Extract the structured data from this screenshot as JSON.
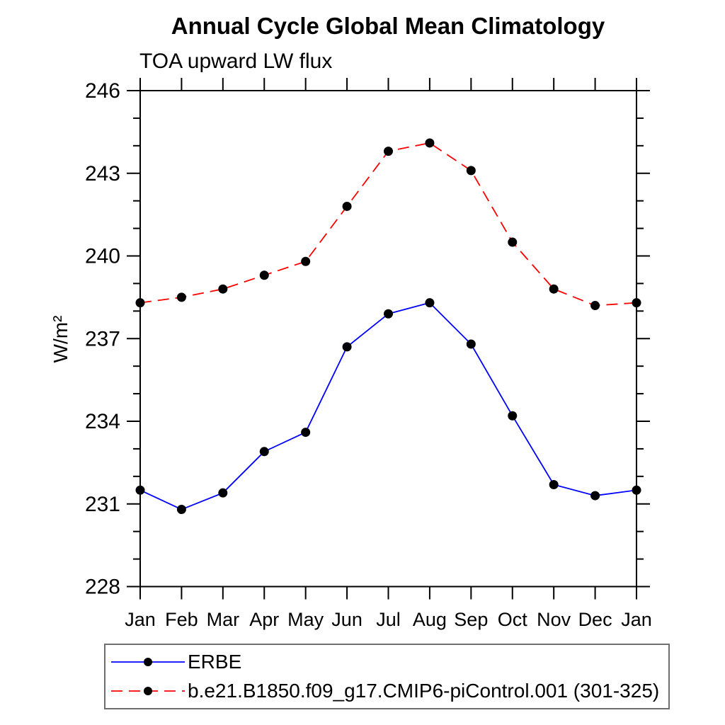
{
  "chart_data": {
    "type": "line",
    "title": "Annual Cycle Global Mean Climatology",
    "subtitle": "TOA upward LW flux",
    "ylabel": "W/m²",
    "xlabel": "",
    "categories": [
      "Jan",
      "Feb",
      "Mar",
      "Apr",
      "May",
      "Jun",
      "Jul",
      "Aug",
      "Sep",
      "Oct",
      "Nov",
      "Dec",
      "Jan"
    ],
    "ylim": [
      228,
      246
    ],
    "ytick_major_step": 3,
    "ytick_minor_step": 1,
    "ytick_labels": [
      "228",
      "231",
      "234",
      "237",
      "240",
      "243",
      "246"
    ],
    "grid": false,
    "legend_position": "bottom",
    "axis_color": "#000000",
    "marker_color": "#000000",
    "series": [
      {
        "name": "ERBE",
        "color": "#0000ff",
        "line_style": "solid",
        "marker": "circle",
        "values": [
          231.5,
          230.8,
          231.4,
          232.9,
          233.6,
          236.7,
          237.9,
          238.3,
          236.8,
          234.2,
          231.7,
          231.3,
          231.5
        ]
      },
      {
        "name": "b.e21.B1850.f09_g17.CMIP6-piControl.001 (301-325)",
        "color": "#ff0000",
        "line_style": "dashed",
        "marker": "circle",
        "values": [
          238.3,
          238.5,
          238.8,
          239.3,
          239.8,
          241.8,
          243.8,
          244.1,
          243.1,
          240.5,
          238.8,
          238.2,
          238.3
        ]
      }
    ]
  }
}
